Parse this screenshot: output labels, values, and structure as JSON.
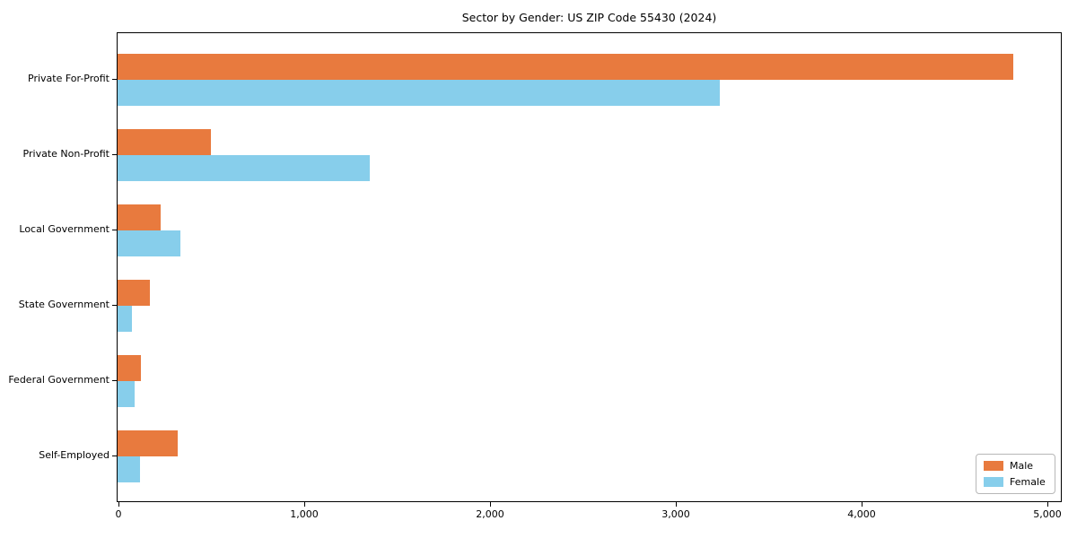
{
  "chart_data": {
    "type": "bar",
    "orientation": "horizontal",
    "title": "Sector by Gender: US ZIP Code 55430 (2024)",
    "categories": [
      "Private For-Profit",
      "Private Non-Profit",
      "Local Government",
      "State Government",
      "Federal Government",
      "Self-Employed"
    ],
    "series": [
      {
        "name": "Male",
        "color": "#E87A3E",
        "values": [
          4820,
          500,
          230,
          175,
          125,
          325
        ]
      },
      {
        "name": "Female",
        "color": "#87CEEB",
        "values": [
          3240,
          1355,
          340,
          75,
          90,
          120
        ]
      }
    ],
    "xlabel": "",
    "ylabel": "",
    "xlim": [
      0,
      5070
    ],
    "xticks": [
      {
        "value": 0,
        "label": "0"
      },
      {
        "value": 1000,
        "label": "1,000"
      },
      {
        "value": 2000,
        "label": "2,000"
      },
      {
        "value": 3000,
        "label": "3,000"
      },
      {
        "value": 4000,
        "label": "4,000"
      },
      {
        "value": 5000,
        "label": "5,000"
      }
    ],
    "grid": false,
    "legend": {
      "position": "lower right"
    }
  }
}
